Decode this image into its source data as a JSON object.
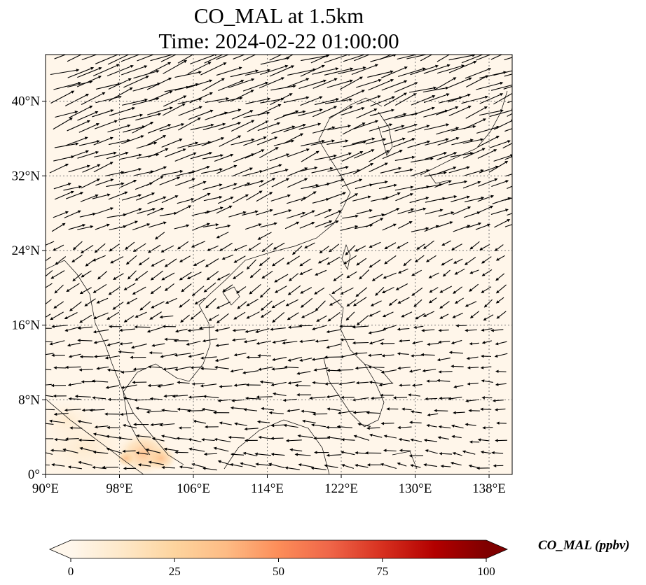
{
  "title": {
    "line1": "CO_MAL at 1.5km",
    "line2": "Time: 2024-02-22 01:00:00"
  },
  "map": {
    "projection": "PlateCarree",
    "lon_range": [
      90,
      140.5
    ],
    "lat_range": [
      0,
      45
    ],
    "gridlines": "dotted",
    "background_color": "#fff6ea",
    "coastline_color": "#000000",
    "vector_color": "#000000"
  },
  "axes": {
    "x_ticks": [
      {
        "value": 90,
        "label": "90°E"
      },
      {
        "value": 98,
        "label": "98°E"
      },
      {
        "value": 106,
        "label": "106°E"
      },
      {
        "value": 114,
        "label": "114°E"
      },
      {
        "value": 122,
        "label": "122°E"
      },
      {
        "value": 130,
        "label": "130°E"
      },
      {
        "value": 138,
        "label": "138°E"
      }
    ],
    "y_ticks": [
      {
        "value": 0,
        "label": "0°"
      },
      {
        "value": 8,
        "label": "8°N"
      },
      {
        "value": 16,
        "label": "16°N"
      },
      {
        "value": 24,
        "label": "24°N"
      },
      {
        "value": 32,
        "label": "32°N"
      },
      {
        "value": 40,
        "label": "40°N"
      }
    ]
  },
  "colorbar": {
    "label": "CO_MAL (ppbv)",
    "min": 0,
    "max": 100,
    "extend": "both",
    "colormap": [
      "#fff7ec",
      "#fee8c8",
      "#fdd49e",
      "#fdbb84",
      "#fc8d59",
      "#ef6548",
      "#d7301f",
      "#b30000",
      "#7f0000"
    ],
    "ticks": [
      {
        "value": 0,
        "label": "0"
      },
      {
        "value": 25,
        "label": "25"
      },
      {
        "value": 50,
        "label": "50"
      },
      {
        "value": 75,
        "label": "75"
      },
      {
        "value": 100,
        "label": "100"
      }
    ]
  }
}
